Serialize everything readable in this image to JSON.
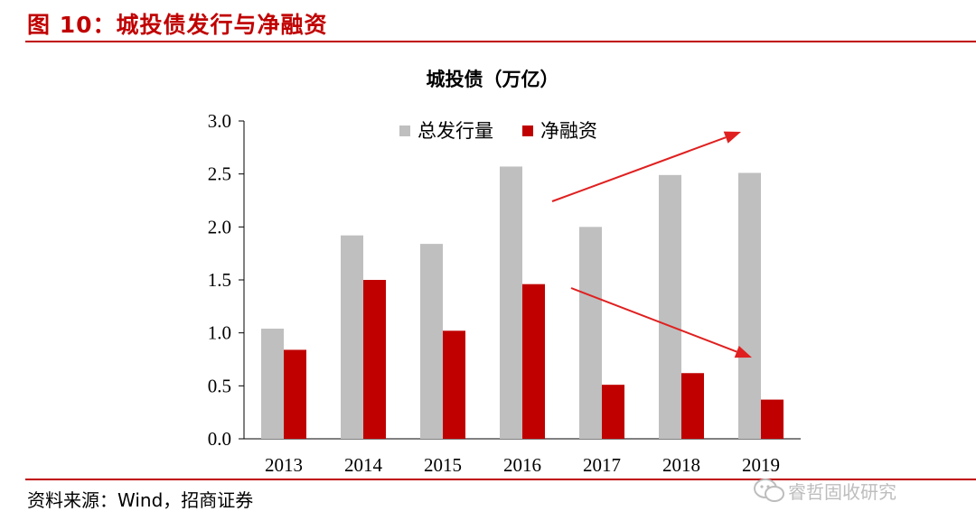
{
  "figure": {
    "title": "图 10：城投债发行与净融资",
    "source": "资料来源：Wind，招商证券",
    "watermark": "睿哲固收研究"
  },
  "colors": {
    "accent": "#c00000",
    "gross_bar": "#bfbfbf",
    "net_bar": "#c00000",
    "arrow": "#e02020"
  },
  "chart_data": {
    "type": "bar",
    "title": "城投债（万亿）",
    "xlabel": "",
    "ylabel": "",
    "categories": [
      "2013",
      "2014",
      "2015",
      "2016",
      "2017",
      "2018",
      "2019"
    ],
    "series": [
      {
        "name": "总发行量",
        "values": [
          1.04,
          1.92,
          1.84,
          2.57,
          2.0,
          2.49,
          2.51
        ]
      },
      {
        "name": "净融资",
        "values": [
          0.84,
          1.5,
          1.02,
          1.46,
          0.51,
          0.62,
          0.37
        ]
      }
    ],
    "ylim": [
      0,
      3.0
    ],
    "yticks": [
      "0.0",
      "0.5",
      "1.0",
      "1.5",
      "2.0",
      "2.5",
      "3.0"
    ],
    "grid": false,
    "legend_position": "top",
    "annotations": [
      "upward arrow over gross issuance (2016–2019)",
      "downward arrow over net financing (2016–2019)"
    ]
  }
}
